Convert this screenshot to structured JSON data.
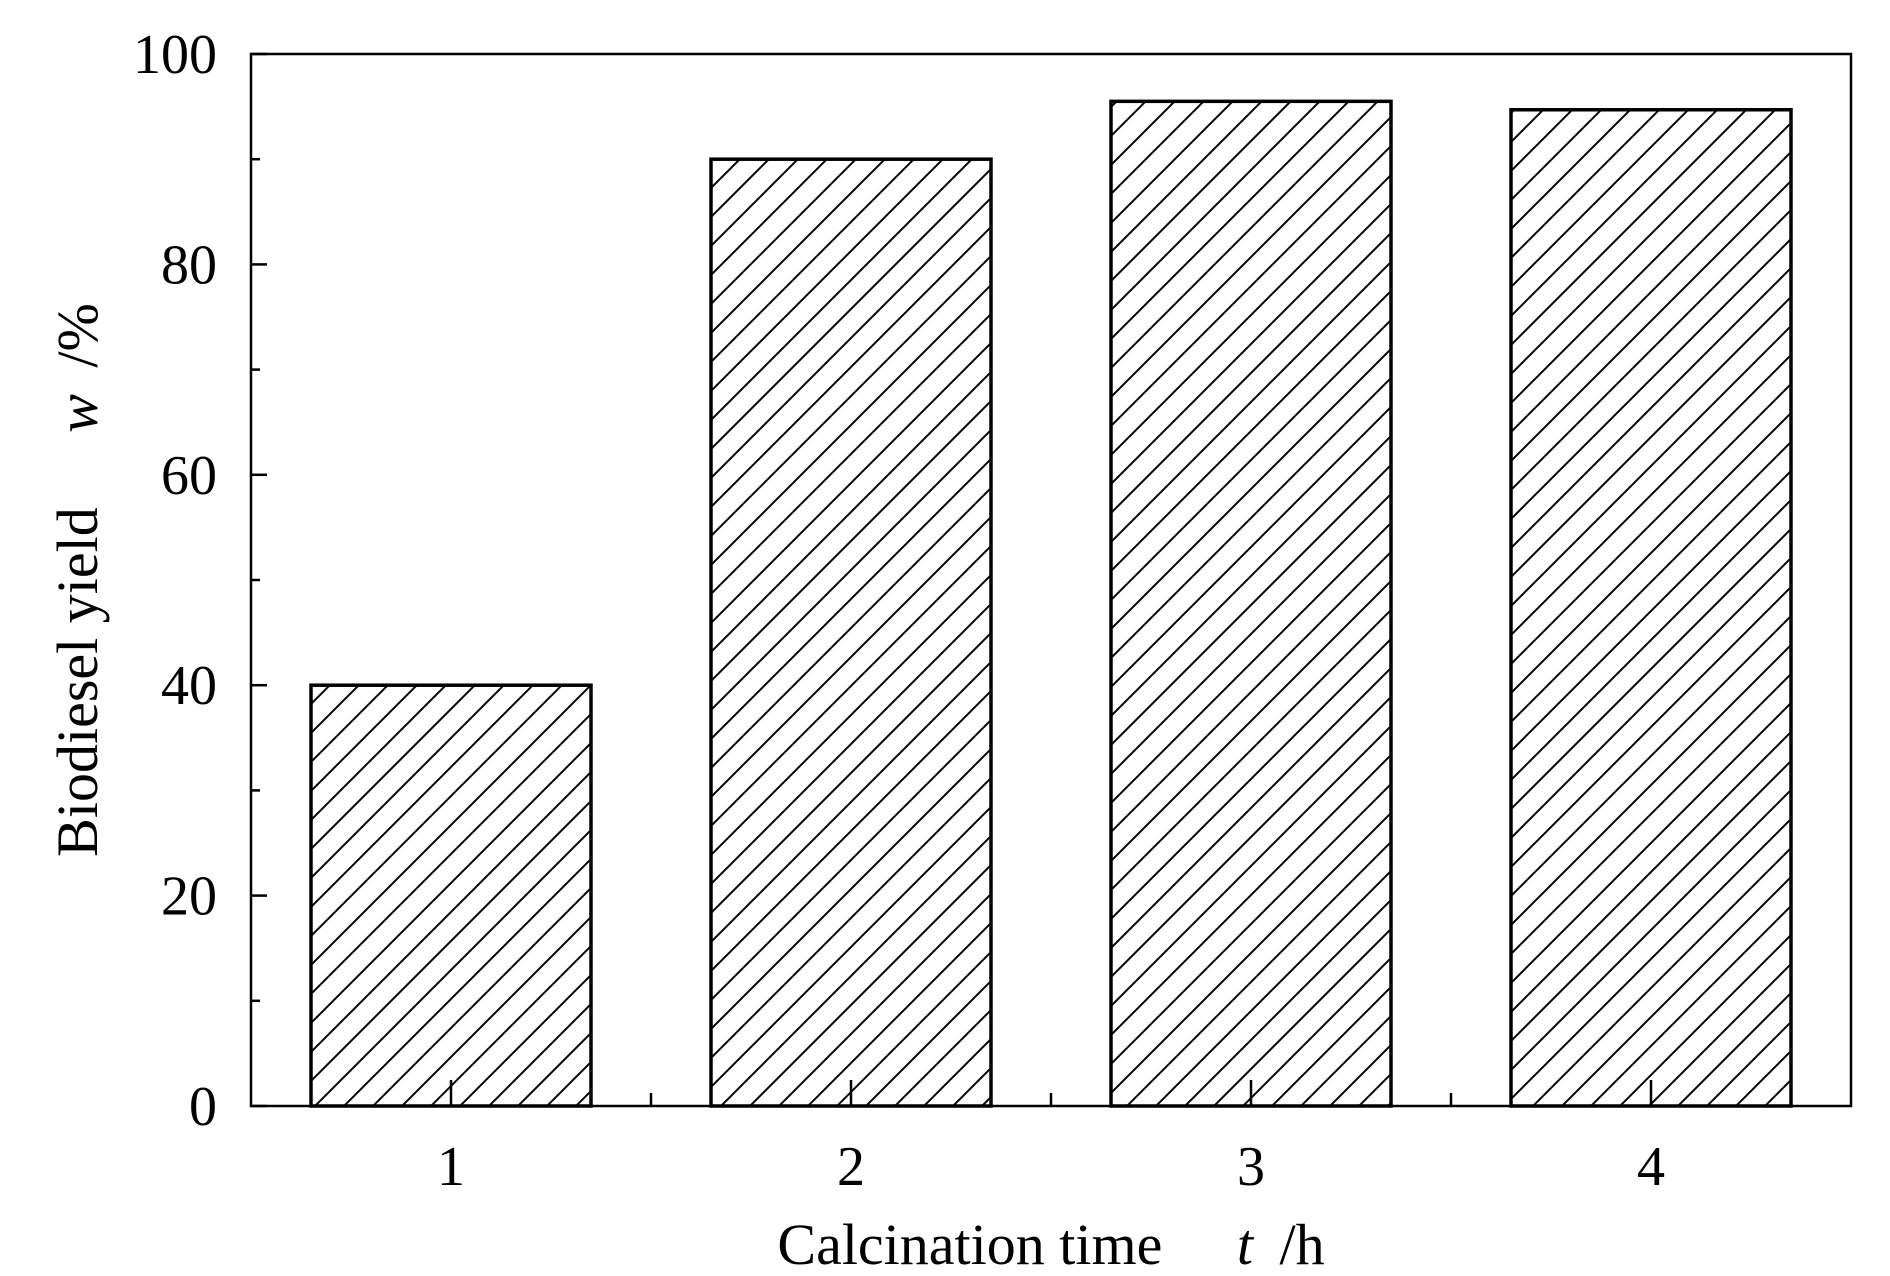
{
  "chart_data": {
    "type": "bar",
    "categories": [
      "1",
      "2",
      "3",
      "4"
    ],
    "values": [
      40,
      90,
      95.5,
      94.7
    ],
    "xlabel": {
      "text": "Calcination time",
      "symbol": "t",
      "unit": "/h"
    },
    "ylabel": {
      "text": "Biodiesel yield",
      "symbol": "w",
      "unit": "/%"
    },
    "ylim": [
      0,
      100
    ],
    "yticks": [
      0,
      20,
      40,
      60,
      80,
      100
    ],
    "grid": false,
    "legend": "none",
    "bar_fill": "diagonal-hatch",
    "colors": {
      "bar_stroke": "#000000",
      "hatch": "#000000",
      "background": "#ffffff"
    }
  }
}
